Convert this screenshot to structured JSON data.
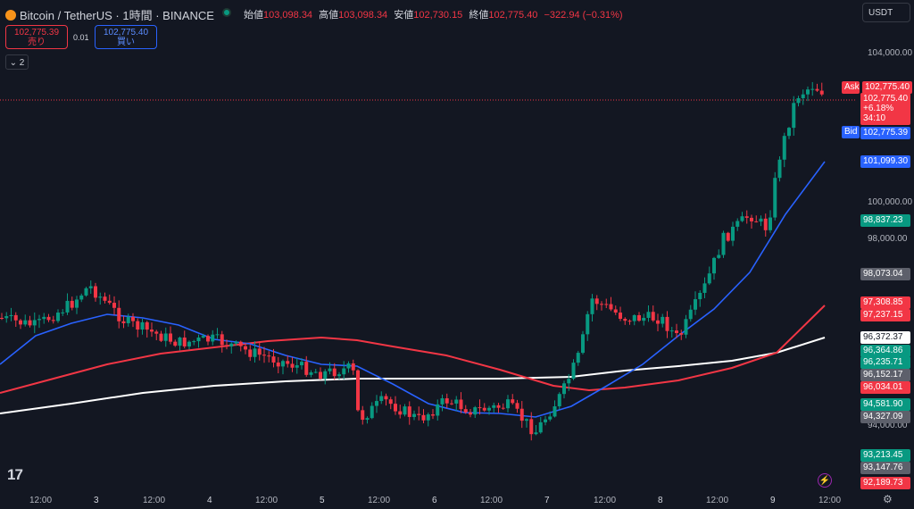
{
  "header": {
    "symbol": "Bitcoin / TetherUS · 1時間 · BINANCE",
    "ohlc": [
      {
        "label": "始値",
        "value": "103,098.34"
      },
      {
        "label": "高値",
        "value": "103,098.34"
      },
      {
        "label": "安値",
        "value": "102,730.15"
      },
      {
        "label": "終値",
        "value": "102,775.40"
      }
    ],
    "change": "−322.94 (−0.31%)"
  },
  "trade": {
    "sell_price": "102,775.39",
    "sell_label": "売り",
    "spread": "0.01",
    "buy_price": "102,775.40",
    "buy_label": "買い"
  },
  "indicator_toggle": "2",
  "currency_select": "USDT",
  "price_axis": {
    "ticks": [
      "104,000.00",
      "100,000.00",
      "98,000.00",
      "94,000.00"
    ],
    "tags": [
      {
        "text": "Ask",
        "color": "#f23645"
      },
      {
        "text": "102,775.40",
        "color": "#f23645"
      },
      {
        "text": "102,775.40\n+6.18%\n34:10",
        "color": "#f23645"
      },
      {
        "text": "Bid",
        "color": "#2962ff"
      },
      {
        "text": "102,775.39",
        "color": "#2962ff"
      },
      {
        "text": "101,099.30",
        "color": "#2962ff"
      },
      {
        "text": "98,837.23",
        "color": "#089981"
      },
      {
        "text": "98,073.04",
        "color": "#5d606b"
      },
      {
        "text": "97,308.85",
        "color": "#f23645"
      },
      {
        "text": "97,237.15",
        "color": "#f23645"
      },
      {
        "text": "96,372.37",
        "color": "#ffffff"
      },
      {
        "text": "96,364.86",
        "color": "#089981"
      },
      {
        "text": "96,235.71",
        "color": "#089981"
      },
      {
        "text": "96,152.17",
        "color": "#5d606b"
      },
      {
        "text": "96,034.01",
        "color": "#f23645"
      },
      {
        "text": "94,581.90",
        "color": "#089981"
      },
      {
        "text": "94,327.09",
        "color": "#5d606b"
      },
      {
        "text": "93,213.45",
        "color": "#089981"
      },
      {
        "text": "93,147.76",
        "color": "#5d606b"
      },
      {
        "text": "92,189.73",
        "color": "#f23645"
      }
    ]
  },
  "time_axis": [
    "12:00",
    "3",
    "12:00",
    "4",
    "12:00",
    "5",
    "12:00",
    "6",
    "12:00",
    "7",
    "12:00",
    "8",
    "12:00",
    "9",
    "12:00"
  ],
  "chart_data": {
    "type": "candlestick",
    "symbol": "BTC/USDT",
    "interval": "1h",
    "ylim": [
      92000,
      104800
    ],
    "price_ticks": [
      104000,
      100000,
      98000,
      94000
    ],
    "ask": 102775.4,
    "bid": 102775.39,
    "ma_series": [
      {
        "color": "#2962ff",
        "last": 101099.3
      },
      {
        "color": "#f23645",
        "last": 97308.85
      },
      {
        "color": "#ffffff",
        "last": 96372.37
      }
    ],
    "colors": {
      "up": "#089981",
      "down": "#f23645",
      "ask_line": "#f23645"
    }
  },
  "watermark": "17",
  "bolt_icon": "lightning-icon",
  "settings_icon": "gear-icon"
}
